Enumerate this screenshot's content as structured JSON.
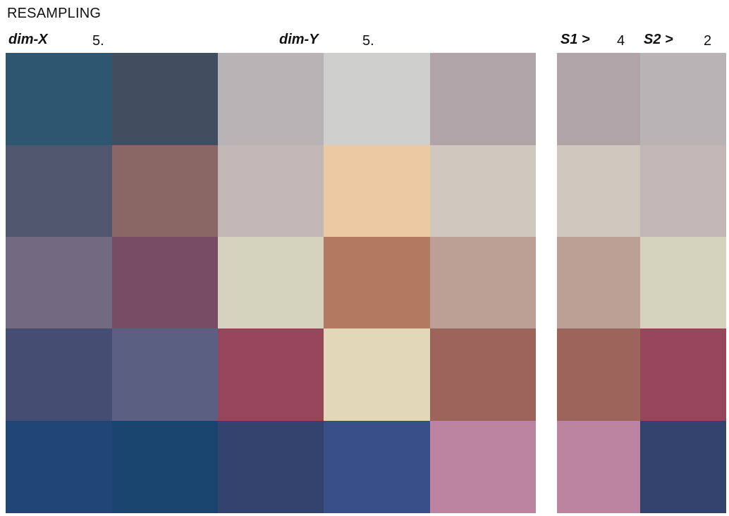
{
  "page": {
    "title": "RESAMPLING"
  },
  "controls": {
    "dim_x": {
      "label": "dim-X",
      "value": "5."
    },
    "dim_y": {
      "label": "dim-Y",
      "value": "5."
    },
    "s1": {
      "label": "S1 >",
      "value": "4"
    },
    "s2": {
      "label": "S2 >",
      "value": "2"
    }
  },
  "grids": {
    "main": [
      [
        "#2f5671",
        "#424d5f",
        "#b8b3b4",
        "#cfcfce",
        "#b0a4a8"
      ],
      [
        "#51566f",
        "#8a6764",
        "#c2b7b4",
        "#edc9a3",
        "#d0c8be"
      ],
      [
        "#716a80",
        "#774c64",
        "#d5d3bd",
        "#b47a61",
        "#bca095"
      ],
      [
        "#444e72",
        "#5b5f81",
        "#96455b",
        "#e2d8b9",
        "#9d645b"
      ],
      [
        "#1f4676",
        "#18446e",
        "#33436d",
        "#374e87",
        "#bd84a1"
      ]
    ],
    "sample": [
      [
        "#b0a4a8",
        "#b8b4b5"
      ],
      [
        "#d0c8be",
        "#c2b7b5"
      ],
      [
        "#bca095",
        "#d5d3bd"
      ],
      [
        "#9d645b",
        "#96455b"
      ],
      [
        "#bd84a1",
        "#33436d"
      ]
    ]
  }
}
